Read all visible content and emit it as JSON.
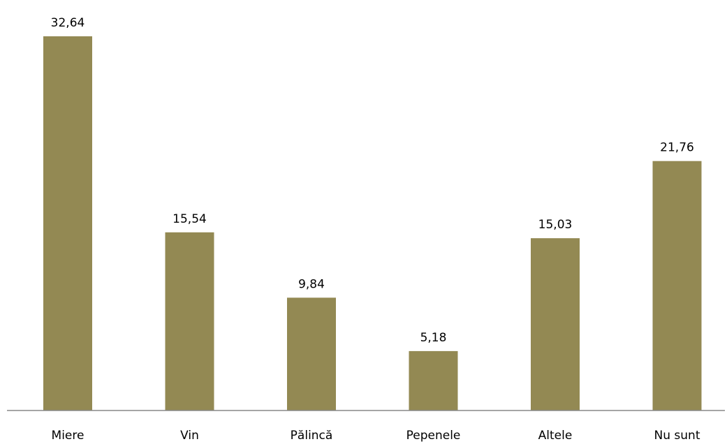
{
  "colors": {
    "bar": "#938953",
    "axis": "#888888",
    "text": "#000000"
  },
  "chart_data": {
    "type": "bar",
    "categories": [
      "Miere",
      "Vin",
      "Pălincă",
      "Pepenele",
      "Altele",
      "Nu sunt"
    ],
    "values": [
      32.64,
      15.54,
      9.84,
      5.18,
      15.03,
      21.76
    ],
    "value_labels": [
      "32,64",
      "15,54",
      "9,84",
      "5,18",
      "15,03",
      "21,76"
    ],
    "title": "",
    "xlabel": "",
    "ylabel": "",
    "ylim": [
      0,
      32.64
    ],
    "grid": false,
    "legend": "none"
  }
}
